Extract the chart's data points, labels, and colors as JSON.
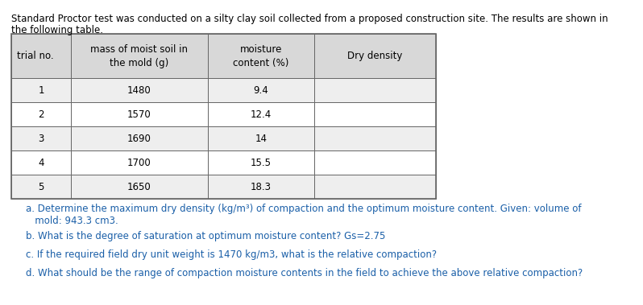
{
  "intro_line1": "Standard Proctor test was conducted on a silty clay soil collected from a proposed construction site. The results are shown in",
  "intro_line2": "the following table.",
  "table_headers": [
    "trial no.",
    "mass of moist soil in\nthe mold (g)",
    "moisture\ncontent (%)",
    "Dry density"
  ],
  "table_data": [
    [
      "1",
      "1480",
      "9.4",
      ""
    ],
    [
      "2",
      "1570",
      "12.4",
      ""
    ],
    [
      "3",
      "1690",
      "14",
      ""
    ],
    [
      "4",
      "1700",
      "15.5",
      ""
    ],
    [
      "5",
      "1650",
      "18.3",
      ""
    ]
  ],
  "question_a_line1": "a. Determine the maximum dry density (kg/m³) of compaction and the optimum moisture content. Given: volume of",
  "question_a_line2": "   mold: 943.3 cm3.",
  "question_b": "b. What is the degree of saturation at optimum moisture content? Gs=2.75",
  "question_c": "c. If the required field dry unit weight is 1470 kg/m3, what is the relative compaction?",
  "question_d": "d. What should be the range of compaction moisture contents in the field to achieve the above relative compaction?",
  "bg_color": "#ffffff",
  "text_color": "#000000",
  "table_border_color": "#666666",
  "header_bg": "#d8d8d8",
  "row_bg_odd": "#eeeeee",
  "row_bg_even": "#ffffff",
  "intro_color": "#000000",
  "question_color": "#1a5fa8",
  "font_size_intro": 8.5,
  "font_size_table_header": 8.5,
  "font_size_table_data": 8.5,
  "font_size_questions": 8.5
}
